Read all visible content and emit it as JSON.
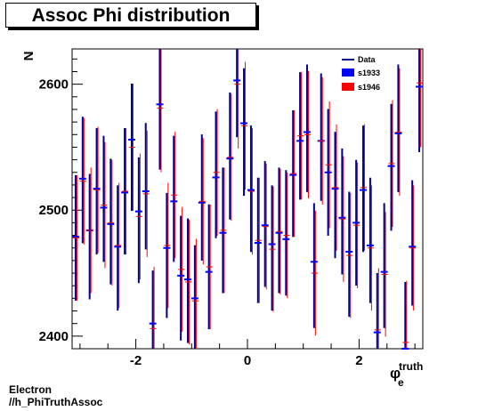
{
  "title": "Assoc Phi distribution",
  "footer": {
    "line1": "Electron",
    "line2": "//h_PhiTruthAssoc"
  },
  "chart_data": {
    "type": "scatter",
    "title": "Assoc Phi distribution",
    "xlabel": "φ_e^truth",
    "xlabel_main": "φ",
    "xlabel_sub": "e",
    "xlabel_sup": "truth",
    "ylabel": "N",
    "xlim": [
      -3.1416,
      3.1416
    ],
    "ylim": [
      2390,
      2628
    ],
    "x_ticks": [
      -2,
      0,
      2
    ],
    "x_tick_labels": [
      "-2",
      "0",
      "2"
    ],
    "y_ticks": [
      2400,
      2500,
      2600
    ],
    "y_tick_labels": [
      "2400",
      "2500",
      "2600"
    ],
    "grid": false,
    "legend_position": "top-right",
    "legend": [
      {
        "label": "Data",
        "style": "line"
      },
      {
        "label": "s1933",
        "style": "box"
      },
      {
        "label": "s1946",
        "style": "box"
      }
    ],
    "colors": {
      "Data": "#00008b",
      "s1933": "#0000ff",
      "s1946": "#ff0000"
    },
    "n_bins": 50,
    "data_values": [
      2478,
      2524,
      2479,
      2515,
      2509,
      2491,
      2470,
      2515,
      2550,
      2492,
      2519,
      2403,
      2583,
      2464,
      2509,
      2446,
      2444,
      2423,
      2510,
      2455,
      2528,
      2484,
      2543,
      2609,
      2562,
      2517,
      2476,
      2489,
      2470,
      2484,
      2482,
      2529,
      2559,
      2565,
      2456,
      2558,
      2530,
      2512,
      2499,
      2465,
      2490,
      2517,
      2476,
      2401,
      2456,
      2534,
      2565,
      2394,
      2474,
      2597
    ],
    "series": [
      {
        "name": "s1933",
        "values": [
          2479,
          2525,
          2484,
          2517,
          2502,
          2489,
          2471,
          2514,
          2556,
          2499,
          2515,
          2410,
          2584,
          2470,
          2507,
          2448,
          2445,
          2430,
          2506,
          2451,
          2526,
          2482,
          2541,
          2603,
          2569,
          2516,
          2474,
          2488,
          2473,
          2482,
          2477,
          2528,
          2555,
          2562,
          2459,
          2555,
          2530,
          2517,
          2494,
          2467,
          2490,
          2516,
          2472,
          2403,
          2451,
          2535,
          2561,
          2390,
          2471,
          2598
        ]
      },
      {
        "name": "s1946",
        "values": [
          2478,
          2523,
          2484,
          2516,
          2504,
          2490,
          2472,
          2515,
          2550,
          2495,
          2513,
          2406,
          2581,
          2472,
          2512,
          2453,
          2443,
          2428,
          2507,
          2455,
          2530,
          2484,
          2542,
          2600,
          2567,
          2515,
          2476,
          2487,
          2469,
          2483,
          2480,
          2529,
          2559,
          2560,
          2450,
          2555,
          2536,
          2518,
          2493,
          2464,
          2488,
          2518,
          2470,
          2405,
          2449,
          2537,
          2562,
          2395,
          2470,
          2601
        ]
      }
    ]
  }
}
